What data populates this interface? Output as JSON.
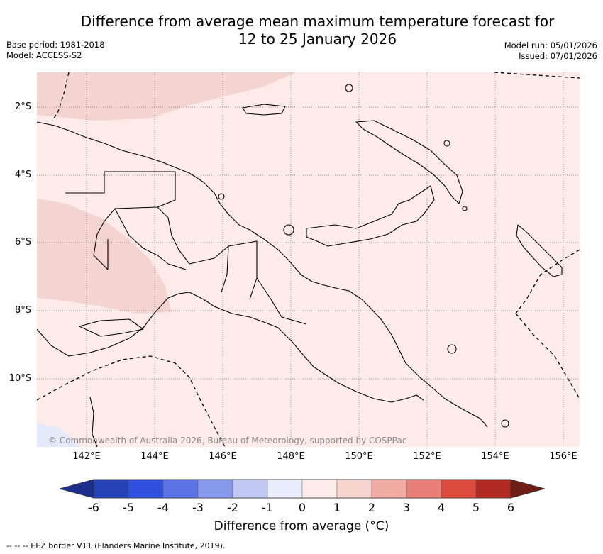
{
  "title": {
    "line1": "Difference from average mean maximum temperature forecast for",
    "line2": "12 to 25 January 2026"
  },
  "meta": {
    "base_period": "Base period: 1981-2018",
    "model": "Model: ACCESS-S2",
    "model_run": "Model run: 05/01/2026",
    "issued": "Issued: 07/01/2026"
  },
  "map": {
    "lat_labels": [
      "2°S",
      "4°S",
      "6°S",
      "8°S",
      "10°S"
    ],
    "lon_labels": [
      "142°E",
      "144°E",
      "146°E",
      "148°E",
      "150°E",
      "152°E",
      "154°E",
      "156°E"
    ],
    "background_color": "#fcebe9",
    "anomaly_patch_color": "#f4d4d0",
    "copyright": "© Commonwealth of Australia 2026, Bureau of Meteorology, supported by COSPPac"
  },
  "colorbar": {
    "ticks": [
      "-6",
      "-5",
      "-4",
      "-3",
      "-2",
      "-1",
      "0",
      "1",
      "2",
      "3",
      "4",
      "5",
      "6"
    ],
    "colors": [
      "#1c2f8c",
      "#2441b6",
      "#2f4fdd",
      "#5b72e4",
      "#8899ec",
      "#c0c7f3",
      "#e9ecfb",
      "#fcebe9",
      "#f6d4cf",
      "#f0aca4",
      "#e88079",
      "#db4a3d",
      "#b02a22",
      "#6e1f18"
    ],
    "label": "Difference from average (°C)"
  },
  "footer": "-- -- -- EEZ border V11 (Flanders Marine Institute, 2019)."
}
